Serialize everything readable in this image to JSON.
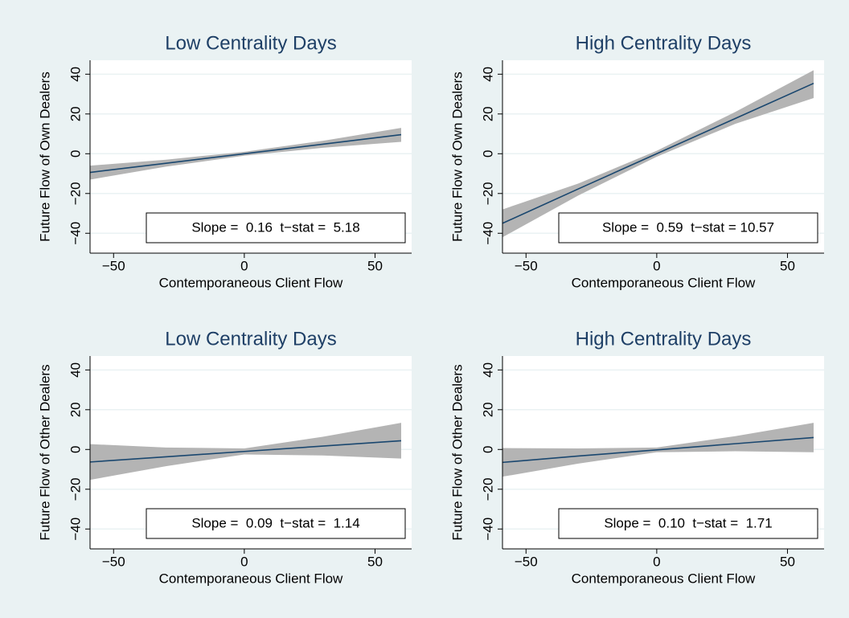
{
  "chart_data": [
    {
      "type": "line",
      "title": "Low Centrality Days",
      "xlabel": "Contemporaneous Client Flow",
      "ylabel": "Future Flow of Own Dealers",
      "annotation": "Slope =  0.16  t−stat =  5.18",
      "x": [
        -59,
        -30,
        0,
        30,
        60
      ],
      "values": [
        -9.4,
        -4.8,
        0,
        4.8,
        9.6
      ],
      "ci_lower": [
        -13,
        -6.5,
        -1,
        3,
        6
      ],
      "ci_upper": [
        -6,
        -3,
        1,
        6.5,
        13
      ],
      "line_color": "#1a476f",
      "band_color": "#b4b4b4",
      "xlim": [
        -59,
        64
      ],
      "ylim": [
        -50,
        47
      ],
      "xticks": [
        {
          "value": -50,
          "label": "−50"
        },
        0,
        50
      ],
      "yticks": [
        {
          "value": -40,
          "label": "−40"
        },
        {
          "value": -20,
          "label": "−20"
        },
        0,
        20,
        40
      ],
      "grid": true
    },
    {
      "type": "line",
      "title": "High Centrality Days",
      "xlabel": "Contemporaneous Client Flow",
      "ylabel": "Future Flow of Own Dealers",
      "annotation": "Slope =  0.59  t−stat = 10.57",
      "x": [
        -59,
        -30,
        0,
        30,
        60
      ],
      "values": [
        -35,
        -17.7,
        0,
        17.7,
        35.4
      ],
      "ci_lower": [
        -42,
        -21,
        -1.5,
        15,
        28
      ],
      "ci_upper": [
        -28,
        -15,
        1.5,
        21,
        42
      ],
      "line_color": "#1a476f",
      "band_color": "#b4b4b4",
      "xlim": [
        -59,
        64
      ],
      "ylim": [
        -50,
        47
      ],
      "xticks": [
        {
          "value": -50,
          "label": "−50"
        },
        0,
        50
      ],
      "yticks": [
        {
          "value": -40,
          "label": "−40"
        },
        {
          "value": -20,
          "label": "−20"
        },
        0,
        20,
        40
      ],
      "grid": true
    },
    {
      "type": "line",
      "title": "Low Centrality Days",
      "xlabel": "Contemporaneous Client Flow",
      "ylabel": "Future Flow of Other Dealers",
      "annotation": "Slope =  0.09  t−stat =  1.14",
      "x": [
        -59,
        -30,
        0,
        30,
        60
      ],
      "values": [
        -6.3,
        -3.7,
        -1,
        1.7,
        4.4
      ],
      "ci_lower": [
        -15.3,
        -8.4,
        -2.5,
        -3,
        -4.6
      ],
      "ci_upper": [
        2.7,
        1,
        0.5,
        6.4,
        13.4
      ],
      "line_color": "#1a476f",
      "band_color": "#b4b4b4",
      "xlim": [
        -59,
        64
      ],
      "ylim": [
        -50,
        47
      ],
      "xticks": [
        {
          "value": -50,
          "label": "−50"
        },
        0,
        50
      ],
      "yticks": [
        {
          "value": -40,
          "label": "−40"
        },
        {
          "value": -20,
          "label": "−20"
        },
        0,
        20,
        40
      ],
      "grid": true
    },
    {
      "type": "line",
      "title": "High Centrality Days",
      "xlabel": "Contemporaneous Client Flow",
      "ylabel": "Future Flow of Other Dealers",
      "annotation": "Slope =  0.10  t−stat =  1.71",
      "x": [
        -59,
        -30,
        0,
        30,
        60
      ],
      "values": [
        -6.5,
        -3.3,
        -0.2,
        2.9,
        6
      ],
      "ci_lower": [
        -13.7,
        -7.1,
        -1.4,
        -0.9,
        -1.4
      ],
      "ci_upper": [
        0.7,
        0.5,
        1,
        6.7,
        13.4
      ],
      "line_color": "#1a476f",
      "band_color": "#b4b4b4",
      "xlim": [
        -59,
        64
      ],
      "ylim": [
        -50,
        47
      ],
      "xticks": [
        {
          "value": -50,
          "label": "−50"
        },
        0,
        50
      ],
      "yticks": [
        {
          "value": -40,
          "label": "−40"
        },
        {
          "value": -20,
          "label": "−20"
        },
        0,
        20,
        40
      ],
      "grid": true
    }
  ]
}
